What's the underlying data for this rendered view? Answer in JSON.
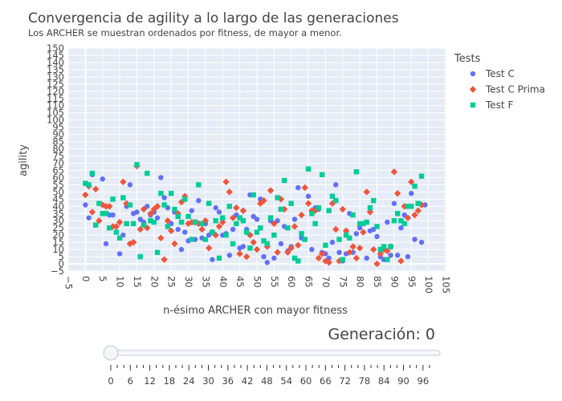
{
  "colors": {
    "background": "#e5ecf6",
    "grid": "#ffffff",
    "test_c": "#636efa",
    "test_c_prima": "#ef553b",
    "test_f": "#00cc96"
  },
  "chart_data": {
    "type": "scatter",
    "title": "Convergencia de agility a lo largo de las generaciones",
    "subtitle": "Los ARCHER se muestran ordenados por fitness, de mayor a menor.",
    "xlabel": "n-ésimo ARCHER con mayor fitness",
    "ylabel": "agility",
    "xlim": [
      -5,
      105
    ],
    "ylim": [
      -5,
      150
    ],
    "xticks": [
      -5,
      0,
      5,
      10,
      15,
      20,
      25,
      30,
      35,
      40,
      45,
      50,
      55,
      60,
      65,
      70,
      75,
      80,
      85,
      90,
      95,
      100,
      105
    ],
    "yticks": [
      -5,
      0,
      5,
      10,
      15,
      20,
      25,
      30,
      35,
      40,
      45,
      50,
      55,
      60,
      65,
      70,
      75,
      80,
      85,
      90,
      95,
      100,
      105,
      110,
      115,
      120,
      125,
      130,
      135,
      140,
      145,
      150
    ],
    "grid": true,
    "legend_title": "Tests",
    "legend_position": "top-right",
    "series": [
      {
        "name": "Test C",
        "marker": "circle",
        "points": [
          [
            0,
            41
          ],
          [
            1,
            32
          ],
          [
            2,
            62
          ],
          [
            3,
            27
          ],
          [
            5,
            59
          ],
          [
            6,
            14
          ],
          [
            7,
            34
          ],
          [
            8,
            34
          ],
          [
            10,
            7
          ],
          [
            11,
            20
          ],
          [
            12,
            40
          ],
          [
            13,
            55
          ],
          [
            14,
            35
          ],
          [
            15,
            36
          ],
          [
            16,
            31
          ],
          [
            17,
            29
          ],
          [
            18,
            40
          ],
          [
            19,
            34
          ],
          [
            20,
            36
          ],
          [
            21,
            32
          ],
          [
            22,
            60
          ],
          [
            23,
            46
          ],
          [
            24,
            39
          ],
          [
            25,
            28
          ],
          [
            26,
            36
          ],
          [
            27,
            24
          ],
          [
            28,
            10
          ],
          [
            29,
            22
          ],
          [
            30,
            16
          ],
          [
            31,
            37
          ],
          [
            32,
            17
          ],
          [
            33,
            44
          ],
          [
            34,
            18
          ],
          [
            35,
            28
          ],
          [
            36,
            20
          ],
          [
            37,
            3
          ],
          [
            38,
            39
          ],
          [
            39,
            36
          ],
          [
            40,
            20
          ],
          [
            41,
            21
          ],
          [
            42,
            6
          ],
          [
            43,
            24
          ],
          [
            44,
            34
          ],
          [
            45,
            11
          ],
          [
            46,
            12
          ],
          [
            47,
            24
          ],
          [
            48,
            48
          ],
          [
            49,
            33
          ],
          [
            50,
            31
          ],
          [
            51,
            45
          ],
          [
            52,
            5
          ],
          [
            53,
            1
          ],
          [
            54,
            30
          ],
          [
            55,
            4
          ],
          [
            56,
            30
          ],
          [
            57,
            14
          ],
          [
            58,
            26
          ],
          [
            59,
            9
          ],
          [
            60,
            12
          ],
          [
            61,
            31
          ],
          [
            62,
            53
          ],
          [
            63,
            18
          ],
          [
            64,
            17
          ],
          [
            65,
            47
          ],
          [
            66,
            10
          ],
          [
            67,
            39
          ],
          [
            68,
            38
          ],
          [
            69,
            8
          ],
          [
            70,
            7
          ],
          [
            71,
            4
          ],
          [
            72,
            15
          ],
          [
            73,
            55
          ],
          [
            74,
            8
          ],
          [
            75,
            2
          ],
          [
            76,
            7
          ],
          [
            77,
            35
          ],
          [
            78,
            8
          ],
          [
            79,
            21
          ],
          [
            80,
            25
          ],
          [
            81,
            28
          ],
          [
            82,
            4
          ],
          [
            83,
            23
          ],
          [
            84,
            24
          ],
          [
            85,
            19
          ],
          [
            86,
            5
          ],
          [
            87,
            3
          ],
          [
            88,
            29
          ],
          [
            89,
            6
          ],
          [
            90,
            42
          ],
          [
            91,
            6
          ],
          [
            92,
            25
          ],
          [
            93,
            34
          ],
          [
            94,
            5
          ],
          [
            95,
            49
          ],
          [
            96,
            17
          ],
          [
            97,
            42
          ],
          [
            98,
            15
          ],
          [
            99,
            41
          ]
        ]
      },
      {
        "name": "Test C Prima",
        "marker": "diamond",
        "points": [
          [
            0,
            48
          ],
          [
            1,
            54
          ],
          [
            2,
            36
          ],
          [
            3,
            52
          ],
          [
            4,
            30
          ],
          [
            5,
            41
          ],
          [
            6,
            40
          ],
          [
            7,
            40
          ],
          [
            8,
            26
          ],
          [
            9,
            26
          ],
          [
            10,
            29
          ],
          [
            11,
            57
          ],
          [
            12,
            42
          ],
          [
            13,
            14
          ],
          [
            14,
            15
          ],
          [
            15,
            68
          ],
          [
            16,
            24
          ],
          [
            17,
            38
          ],
          [
            18,
            25
          ],
          [
            19,
            35
          ],
          [
            20,
            38
          ],
          [
            21,
            40
          ],
          [
            22,
            18
          ],
          [
            23,
            3
          ],
          [
            24,
            30
          ],
          [
            25,
            23
          ],
          [
            26,
            14
          ],
          [
            27,
            35
          ],
          [
            28,
            43
          ],
          [
            29,
            47
          ],
          [
            30,
            28
          ],
          [
            31,
            29
          ],
          [
            32,
            29
          ],
          [
            33,
            28
          ],
          [
            34,
            24
          ],
          [
            35,
            30
          ],
          [
            36,
            11
          ],
          [
            37,
            22
          ],
          [
            38,
            20
          ],
          [
            39,
            26
          ],
          [
            40,
            29
          ],
          [
            41,
            57
          ],
          [
            42,
            50
          ],
          [
            43,
            32
          ],
          [
            44,
            39
          ],
          [
            45,
            7
          ],
          [
            46,
            37
          ],
          [
            47,
            5
          ],
          [
            48,
            20
          ],
          [
            49,
            15
          ],
          [
            50,
            10
          ],
          [
            51,
            42
          ],
          [
            52,
            44
          ],
          [
            53,
            12
          ],
          [
            54,
            51
          ],
          [
            55,
            28
          ],
          [
            56,
            8
          ],
          [
            57,
            45
          ],
          [
            58,
            38
          ],
          [
            59,
            8
          ],
          [
            60,
            11
          ],
          [
            61,
            26
          ],
          [
            62,
            13
          ],
          [
            63,
            34
          ],
          [
            64,
            53
          ],
          [
            65,
            42
          ],
          [
            66,
            37
          ],
          [
            67,
            37
          ],
          [
            68,
            4
          ],
          [
            69,
            7
          ],
          [
            70,
            2
          ],
          [
            71,
            1
          ],
          [
            72,
            42
          ],
          [
            73,
            24
          ],
          [
            74,
            2
          ],
          [
            75,
            38
          ],
          [
            76,
            23
          ],
          [
            77,
            8
          ],
          [
            78,
            12
          ],
          [
            79,
            4
          ],
          [
            80,
            11
          ],
          [
            81,
            22
          ],
          [
            82,
            50
          ],
          [
            83,
            36
          ],
          [
            84,
            10
          ],
          [
            85,
            0
          ],
          [
            86,
            7
          ],
          [
            87,
            10
          ],
          [
            88,
            9
          ],
          [
            89,
            12
          ],
          [
            90,
            64
          ],
          [
            91,
            49
          ],
          [
            92,
            2
          ],
          [
            93,
            40
          ],
          [
            94,
            32
          ],
          [
            95,
            57
          ],
          [
            96,
            34
          ],
          [
            97,
            37
          ],
          [
            98,
            41
          ]
        ]
      },
      {
        "name": "Test F",
        "marker": "square",
        "points": [
          [
            0,
            56
          ],
          [
            1,
            55
          ],
          [
            2,
            63
          ],
          [
            3,
            27
          ],
          [
            4,
            42
          ],
          [
            5,
            35
          ],
          [
            6,
            35
          ],
          [
            7,
            25
          ],
          [
            8,
            45
          ],
          [
            9,
            22
          ],
          [
            10,
            18
          ],
          [
            11,
            46
          ],
          [
            12,
            28
          ],
          [
            13,
            41
          ],
          [
            14,
            28
          ],
          [
            15,
            69
          ],
          [
            16,
            5
          ],
          [
            17,
            27
          ],
          [
            18,
            63
          ],
          [
            19,
            30
          ],
          [
            20,
            29
          ],
          [
            21,
            8
          ],
          [
            22,
            49
          ],
          [
            23,
            41
          ],
          [
            24,
            26
          ],
          [
            25,
            49
          ],
          [
            26,
            38
          ],
          [
            27,
            33
          ],
          [
            28,
            29
          ],
          [
            29,
            45
          ],
          [
            30,
            33
          ],
          [
            31,
            17
          ],
          [
            32,
            29
          ],
          [
            33,
            55
          ],
          [
            34,
            28
          ],
          [
            35,
            17
          ],
          [
            36,
            42
          ],
          [
            37,
            22
          ],
          [
            38,
            30
          ],
          [
            39,
            4
          ],
          [
            40,
            32
          ],
          [
            41,
            20
          ],
          [
            42,
            40
          ],
          [
            43,
            14
          ],
          [
            44,
            28
          ],
          [
            45,
            32
          ],
          [
            46,
            30
          ],
          [
            47,
            22
          ],
          [
            48,
            11
          ],
          [
            49,
            48
          ],
          [
            50,
            22
          ],
          [
            51,
            25
          ],
          [
            52,
            16
          ],
          [
            53,
            14
          ],
          [
            54,
            32
          ],
          [
            55,
            20
          ],
          [
            56,
            46
          ],
          [
            57,
            38
          ],
          [
            58,
            58
          ],
          [
            59,
            25
          ],
          [
            60,
            42
          ],
          [
            61,
            4
          ],
          [
            62,
            2
          ],
          [
            63,
            21
          ],
          [
            64,
            17
          ],
          [
            65,
            66
          ],
          [
            66,
            35
          ],
          [
            67,
            28
          ],
          [
            68,
            39
          ],
          [
            69,
            62
          ],
          [
            70,
            13
          ],
          [
            71,
            37
          ],
          [
            72,
            47
          ],
          [
            73,
            44
          ],
          [
            74,
            17
          ],
          [
            75,
            3
          ],
          [
            76,
            20
          ],
          [
            77,
            18
          ],
          [
            78,
            34
          ],
          [
            79,
            64
          ],
          [
            80,
            28
          ],
          [
            81,
            28
          ],
          [
            82,
            29
          ],
          [
            83,
            39
          ],
          [
            84,
            44
          ],
          [
            85,
            26
          ],
          [
            86,
            10
          ],
          [
            87,
            12
          ],
          [
            88,
            3
          ],
          [
            89,
            12
          ],
          [
            90,
            30
          ],
          [
            91,
            35
          ],
          [
            92,
            30
          ],
          [
            93,
            28
          ],
          [
            94,
            40
          ],
          [
            95,
            40
          ],
          [
            96,
            54
          ],
          [
            97,
            42
          ],
          [
            98,
            61
          ]
        ]
      }
    ]
  },
  "slider": {
    "current_label": "Generación: 0",
    "value": 0,
    "min": 0,
    "max": 99,
    "tick_labels": [
      "0",
      "6",
      "12",
      "18",
      "24",
      "30",
      "36",
      "42",
      "48",
      "54",
      "60",
      "66",
      "72",
      "78",
      "84",
      "90",
      "96"
    ]
  }
}
